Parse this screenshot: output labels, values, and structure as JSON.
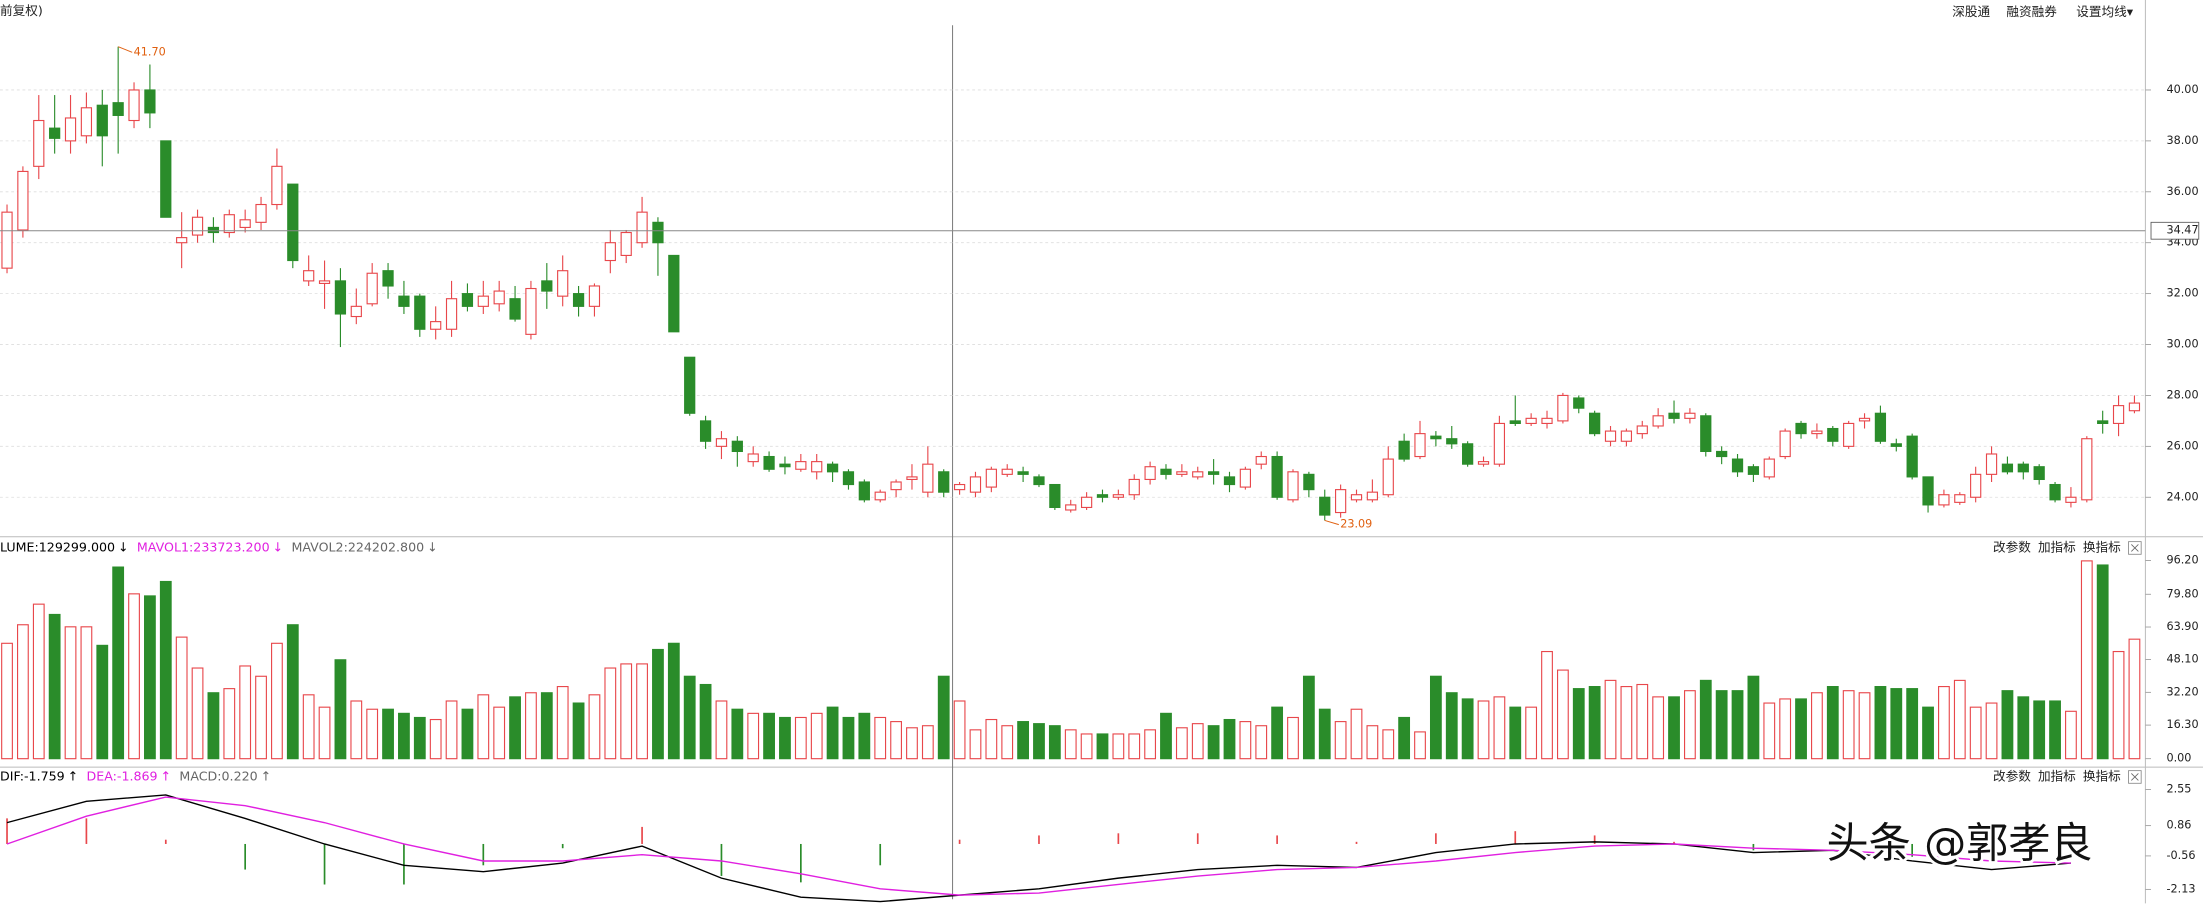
{
  "top_bar": {
    "left": "前复权)",
    "buttons": [
      "深股通",
      "融资融券",
      "设置均线▾"
    ]
  },
  "watermark": "头条 @郭孝良",
  "chart_data": [
    {
      "type": "candlestick",
      "up_color": "#e8474b",
      "down_color": "#2a8c2a",
      "grid": true,
      "ylim": [
        22.45,
        42.54
      ],
      "yticks": [
        {
          "value": 24,
          "label": "24.00"
        },
        {
          "value": 26,
          "label": "26.00"
        },
        {
          "value": 28,
          "label": "28.00"
        },
        {
          "value": 30,
          "label": "30.00"
        },
        {
          "value": 32,
          "label": "32.00"
        },
        {
          "value": 34,
          "label": "34.00"
        },
        {
          "value": 36,
          "label": "36.00"
        },
        {
          "value": 38,
          "label": "38.00"
        },
        {
          "value": 40,
          "label": "40.00"
        }
      ],
      "crosshair": {
        "value": 34.47,
        "label": "34.47"
      },
      "annotations": [
        {
          "value": 41.7,
          "label": "41.70"
        },
        {
          "value": 23.09,
          "label": "23.09"
        }
      ],
      "open": [
        33.0,
        34.5,
        37.0,
        38.5,
        38.0,
        38.2,
        39.4,
        39.5,
        38.8,
        40.0,
        38.0,
        34.0,
        34.3,
        34.6,
        34.4,
        34.6,
        34.8,
        35.5,
        36.3,
        32.5,
        32.4,
        32.5,
        31.1,
        31.6,
        32.9,
        31.9,
        31.9,
        30.6,
        30.6,
        32.0,
        31.5,
        31.6,
        31.8,
        30.4,
        32.5,
        31.9,
        32.0,
        31.5,
        33.3,
        33.5,
        34.0,
        34.8,
        33.5,
        29.5,
        27.0,
        26.0,
        26.2,
        25.4,
        25.6,
        25.3,
        25.1,
        25.0,
        25.3,
        25.0,
        24.6,
        23.9,
        24.3,
        24.7,
        24.2,
        25.0,
        24.3,
        24.2,
        24.4,
        24.9,
        25.0,
        24.8,
        24.5,
        23.5,
        23.6,
        24.1,
        24.0,
        24.1,
        24.7,
        25.1,
        24.9,
        24.8,
        25.0,
        24.8,
        24.4,
        25.3,
        25.6,
        23.9,
        24.9,
        24.0,
        23.4,
        23.9,
        23.9,
        24.1,
        26.2,
        25.6,
        26.4,
        26.3,
        26.1,
        25.3,
        25.3,
        27.0,
        26.9,
        26.9,
        27.0,
        27.9,
        27.3,
        26.2,
        26.2,
        26.5,
        26.8,
        27.3,
        27.1,
        27.2,
        25.8,
        25.5,
        25.2,
        24.8,
        25.6,
        26.9,
        26.5,
        26.7,
        26.0,
        27.0,
        27.3,
        26.1,
        26.4,
        24.8,
        23.7,
        23.8,
        24.0,
        24.9,
        25.3,
        25.3,
        25.2,
        24.5,
        23.8,
        23.9,
        27.0,
        26.9,
        27.4
      ],
      "high": [
        35.5,
        37.0,
        39.8,
        39.8,
        39.8,
        39.9,
        40.0,
        41.7,
        40.3,
        41.0,
        38.0,
        35.2,
        35.3,
        35.0,
        35.3,
        35.3,
        35.8,
        37.7,
        36.3,
        33.5,
        33.3,
        33.0,
        32.2,
        33.2,
        33.2,
        32.5,
        32.0,
        31.5,
        32.5,
        32.4,
        32.5,
        32.5,
        32.3,
        32.5,
        33.2,
        33.5,
        32.3,
        32.4,
        34.5,
        34.5,
        35.8,
        35.0,
        33.5,
        29.5,
        27.2,
        26.6,
        26.4,
        26.0,
        25.8,
        25.6,
        25.7,
        25.7,
        25.4,
        25.1,
        24.7,
        24.3,
        24.7,
        25.3,
        26.0,
        25.1,
        24.6,
        25.0,
        25.2,
        25.3,
        25.2,
        24.9,
        24.5,
        23.9,
        24.2,
        24.3,
        24.3,
        24.9,
        25.4,
        25.3,
        25.3,
        25.2,
        25.5,
        25.0,
        25.2,
        25.8,
        25.8,
        25.1,
        25.0,
        24.3,
        24.5,
        24.3,
        24.7,
        26.0,
        26.5,
        27.0,
        26.6,
        26.8,
        26.2,
        25.6,
        27.2,
        28.0,
        27.3,
        27.4,
        28.1,
        28.0,
        27.4,
        26.8,
        26.7,
        27.0,
        27.5,
        27.8,
        27.5,
        27.3,
        26.0,
        25.7,
        25.3,
        25.6,
        26.7,
        27.0,
        26.9,
        26.8,
        27.0,
        27.3,
        27.6,
        26.3,
        26.5,
        24.8,
        24.3,
        24.2,
        25.2,
        26.0,
        25.6,
        25.4,
        25.3,
        24.6,
        24.4,
        26.4,
        27.4,
        28.0,
        28.0
      ],
      "low": [
        32.8,
        34.2,
        36.5,
        37.5,
        37.5,
        37.9,
        37.0,
        37.5,
        38.5,
        38.5,
        35.0,
        33.0,
        34.0,
        34.0,
        34.2,
        34.4,
        34.5,
        35.3,
        33.0,
        32.3,
        31.4,
        29.9,
        30.8,
        31.5,
        31.8,
        31.2,
        30.3,
        30.2,
        30.3,
        31.3,
        31.2,
        31.3,
        30.9,
        30.2,
        31.4,
        31.5,
        31.1,
        31.1,
        32.8,
        33.2,
        33.8,
        32.7,
        30.5,
        27.2,
        25.9,
        25.5,
        25.2,
        25.2,
        25.0,
        24.9,
        25.0,
        24.7,
        24.6,
        24.3,
        23.8,
        23.8,
        24.0,
        24.3,
        24.0,
        24.0,
        24.1,
        24.0,
        24.2,
        24.8,
        24.6,
        24.4,
        23.5,
        23.4,
        23.5,
        23.8,
        23.9,
        23.9,
        24.5,
        24.7,
        24.8,
        24.7,
        24.5,
        24.2,
        24.3,
        25.1,
        23.9,
        23.8,
        24.0,
        23.09,
        23.2,
        23.8,
        23.8,
        24.0,
        25.4,
        25.5,
        26.0,
        25.9,
        25.2,
        25.2,
        25.2,
        26.8,
        26.8,
        26.7,
        26.9,
        27.3,
        26.4,
        26.0,
        26.0,
        26.3,
        26.7,
        26.9,
        26.9,
        25.6,
        25.3,
        24.8,
        24.6,
        24.7,
        25.5,
        26.3,
        26.3,
        26.0,
        25.9,
        26.7,
        26.1,
        25.8,
        24.7,
        23.4,
        23.6,
        23.7,
        23.8,
        24.6,
        24.9,
        24.7,
        24.5,
        23.8,
        23.6,
        23.8,
        26.5,
        26.4,
        27.3
      ],
      "close": [
        35.2,
        36.8,
        38.8,
        38.1,
        38.9,
        39.3,
        38.2,
        39.0,
        40.0,
        39.1,
        35.0,
        34.2,
        35.0,
        34.4,
        35.1,
        34.9,
        35.5,
        37.0,
        33.3,
        32.9,
        32.5,
        31.2,
        31.5,
        32.8,
        32.3,
        31.5,
        30.6,
        30.9,
        31.8,
        31.5,
        31.9,
        32.1,
        31.0,
        32.2,
        32.1,
        32.9,
        31.5,
        32.3,
        34.0,
        34.4,
        35.2,
        34.0,
        30.5,
        27.3,
        26.2,
        26.3,
        25.8,
        25.7,
        25.1,
        25.2,
        25.4,
        25.4,
        25.0,
        24.5,
        23.9,
        24.2,
        24.6,
        24.8,
        25.3,
        24.2,
        24.5,
        24.8,
        25.1,
        25.1,
        24.9,
        24.5,
        23.6,
        23.7,
        24.0,
        24.0,
        24.1,
        24.7,
        25.2,
        24.9,
        25.0,
        25.0,
        24.9,
        24.5,
        25.1,
        25.6,
        24.0,
        25.0,
        24.3,
        23.3,
        24.3,
        24.1,
        24.2,
        25.5,
        25.5,
        26.5,
        26.3,
        26.1,
        25.3,
        25.4,
        26.9,
        26.9,
        27.1,
        27.1,
        28.0,
        27.5,
        26.5,
        26.6,
        26.6,
        26.8,
        27.2,
        27.1,
        27.3,
        25.8,
        25.6,
        25.0,
        24.9,
        25.5,
        26.6,
        26.5,
        26.6,
        26.2,
        26.9,
        27.1,
        26.2,
        26.0,
        24.8,
        23.7,
        24.1,
        24.1,
        24.9,
        25.7,
        25.0,
        25.0,
        24.7,
        23.9,
        24.0,
        26.3,
        26.9,
        27.6,
        27.7
      ]
    },
    {
      "type": "bar",
      "indicators": [
        {
          "text": "LUME:129299.000",
          "arrow": "↓",
          "color": "#000000"
        },
        {
          "text": "MAVOL1:233723.200",
          "arrow": "↓",
          "color": "#e020e0"
        },
        {
          "text": "MAVOL2:224202.800",
          "arrow": "↓",
          "color": "#666666"
        }
      ],
      "buttons": [
        "改参数",
        "加指标",
        "换指标"
      ],
      "ylim": [
        -4.1,
        97.5
      ],
      "yticks": [
        {
          "value": 0,
          "label": "0.00"
        },
        {
          "value": 16.3,
          "label": "16.30"
        },
        {
          "value": 32.2,
          "label": "32.20"
        },
        {
          "value": 48.1,
          "label": "48.10"
        },
        {
          "value": 63.9,
          "label": "63.90"
        },
        {
          "value": 79.8,
          "label": "79.80"
        },
        {
          "value": 96.2,
          "label": "96.20"
        }
      ],
      "values": [
        56,
        65,
        75,
        70,
        64,
        64,
        55,
        93,
        80,
        79,
        86,
        59,
        44,
        32,
        34,
        45,
        40,
        56,
        65,
        31,
        25,
        48,
        28,
        24,
        24,
        22,
        20,
        19,
        28,
        24,
        31,
        25,
        30,
        32,
        32,
        35,
        27,
        31,
        44,
        46,
        46,
        53,
        56,
        40,
        36,
        28,
        24,
        22,
        22,
        20,
        20,
        22,
        25,
        20,
        22,
        20,
        18,
        15,
        16,
        40,
        28,
        14,
        19,
        16,
        18,
        17,
        16,
        14,
        12,
        12,
        12,
        12,
        14,
        22,
        15,
        17,
        16,
        19,
        18,
        16,
        25,
        20,
        40,
        24,
        18,
        24,
        16,
        14,
        20,
        13,
        40,
        32,
        29,
        28,
        30,
        25,
        25,
        52,
        43,
        34,
        35,
        38,
        35,
        36,
        30,
        30,
        33,
        38,
        33,
        33,
        40,
        27,
        29,
        29,
        32,
        35,
        33,
        32,
        35,
        34,
        34,
        25,
        35,
        38,
        25,
        27,
        33,
        30,
        28,
        28,
        23,
        96,
        94,
        52,
        58
      ]
    },
    {
      "type": "macd",
      "indicators": [
        {
          "text": "DIF:-1.759",
          "arrow": "↑",
          "color": "#000000"
        },
        {
          "text": "DEA:-1.869",
          "arrow": "↑",
          "color": "#e020e0"
        },
        {
          "text": "MACD:0.220",
          "arrow": "↑",
          "color": "#666666"
        }
      ],
      "buttons": [
        "改参数",
        "加指标",
        "换指标"
      ],
      "ylim": [
        -2.59,
        2.68
      ],
      "yticks": [
        2.55,
        0.86,
        -0.56,
        -2.13
      ],
      "x": [
        0,
        5,
        10,
        15,
        20,
        25,
        30,
        35,
        40,
        45,
        50,
        55,
        60,
        65,
        70,
        75,
        80,
        85,
        90,
        95,
        100,
        105,
        110,
        115,
        120,
        125,
        130
      ],
      "series": [
        {
          "color": "#000000",
          "values": [
            1.0,
            2.0,
            2.3,
            1.2,
            0.0,
            -1.0,
            -1.3,
            -0.9,
            -0.1,
            -1.6,
            -2.5,
            -2.7,
            -2.4,
            -2.1,
            -1.6,
            -1.2,
            -1.0,
            -1.1,
            -0.4,
            0.0,
            0.1,
            0.0,
            -0.4,
            -0.3,
            -0.8,
            -1.2,
            -0.9
          ]
        },
        {
          "color": "#e020e0",
          "values": [
            0.0,
            1.3,
            2.2,
            1.8,
            1.0,
            0.0,
            -0.8,
            -0.8,
            -0.5,
            -0.8,
            -1.4,
            -2.1,
            -2.4,
            -2.3,
            -1.9,
            -1.5,
            -1.2,
            -1.1,
            -0.8,
            -0.4,
            -0.1,
            0.0,
            -0.2,
            -0.3,
            -0.5,
            -0.8,
            -0.9
          ]
        }
      ],
      "histogram": [
        1.2,
        1.2,
        0.2,
        -1.2,
        -1.9,
        -1.9,
        -1.0,
        -0.2,
        0.8,
        -1.5,
        -1.8,
        -1.0,
        0.2,
        0.4,
        0.5,
        0.5,
        0.4,
        0.1,
        0.5,
        0.6,
        0.4,
        0.1,
        -0.3,
        0.1,
        -0.6,
        -0.7,
        0.1
      ]
    }
  ]
}
